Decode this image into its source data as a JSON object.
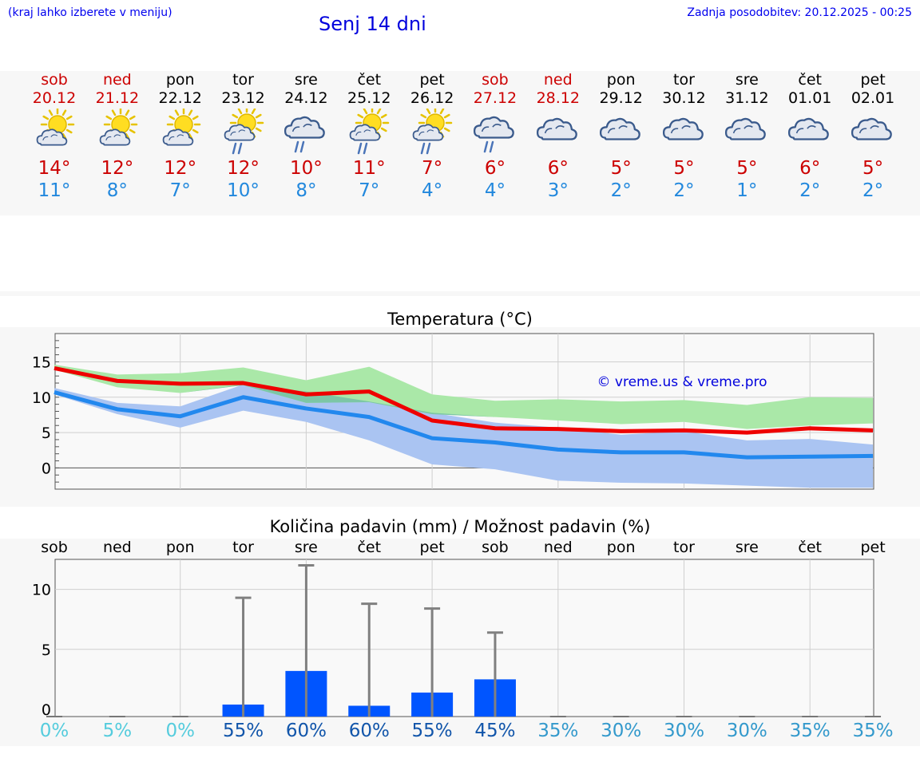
{
  "header": {
    "menu_hint": "(kraj lahko izberete v meniju)",
    "title": "Senj 14 dni",
    "updated": "Zadnja posodobitev: 20.12.2025 - 00:25"
  },
  "days": [
    {
      "name": "sob",
      "date": "20.12",
      "weekend": true,
      "icon": "sun-cloud-icon",
      "tmax": "14°",
      "tmin": "11°"
    },
    {
      "name": "ned",
      "date": "21.12",
      "weekend": true,
      "icon": "sun-cloud-icon",
      "tmax": "12°",
      "tmin": "8°"
    },
    {
      "name": "pon",
      "date": "22.12",
      "weekend": false,
      "icon": "sun-cloud-icon",
      "tmax": "12°",
      "tmin": "7°"
    },
    {
      "name": "tor",
      "date": "23.12",
      "weekend": false,
      "icon": "sun-cloud-rain-icon",
      "tmax": "12°",
      "tmin": "10°"
    },
    {
      "name": "sre",
      "date": "24.12",
      "weekend": false,
      "icon": "cloud-rain-icon",
      "tmax": "10°",
      "tmin": "8°"
    },
    {
      "name": "čet",
      "date": "25.12",
      "weekend": false,
      "icon": "sun-cloud-rain-icon",
      "tmax": "11°",
      "tmin": "7°"
    },
    {
      "name": "pet",
      "date": "26.12",
      "weekend": false,
      "icon": "sun-cloud-rain-icon",
      "tmax": "7°",
      "tmin": "4°"
    },
    {
      "name": "sob",
      "date": "27.12",
      "weekend": true,
      "icon": "cloud-rain-icon",
      "tmax": "6°",
      "tmin": "4°"
    },
    {
      "name": "ned",
      "date": "28.12",
      "weekend": true,
      "icon": "cloud-icon",
      "tmax": "6°",
      "tmin": "3°"
    },
    {
      "name": "pon",
      "date": "29.12",
      "weekend": false,
      "icon": "cloud-icon",
      "tmax": "5°",
      "tmin": "2°"
    },
    {
      "name": "tor",
      "date": "30.12",
      "weekend": false,
      "icon": "cloud-icon",
      "tmax": "5°",
      "tmin": "2°"
    },
    {
      "name": "sre",
      "date": "31.12",
      "weekend": false,
      "icon": "cloud-icon",
      "tmax": "5°",
      "tmin": "1°"
    },
    {
      "name": "čet",
      "date": "01.01",
      "weekend": false,
      "icon": "cloud-icon",
      "tmax": "6°",
      "tmin": "2°"
    },
    {
      "name": "pet",
      "date": "02.01",
      "weekend": false,
      "icon": "cloud-icon",
      "tmax": "5°",
      "tmin": "2°"
    }
  ],
  "colors": {
    "weekend": "#cc0000",
    "tmax": "#cc0000",
    "tmin": "#2288dd",
    "maxLine": "#ee0000",
    "minLine": "#2288ee",
    "maxBand": "#aae8a8",
    "minBand": "#aac4f2",
    "overlapBand": "#7cc6a6",
    "bar": "#0055ff",
    "whisker": "#808080",
    "pctLow": "#55ccdd",
    "pctMid": "#3399cc",
    "pctHigh": "#1155aa"
  },
  "chart_data": [
    {
      "type": "line",
      "title": "Temperatura (°C)",
      "watermark": "© vreme.us & vreme.pro",
      "ylim": [
        -3,
        19
      ],
      "yticks": [
        0,
        5,
        10,
        15
      ],
      "series": [
        {
          "name": "max",
          "values": [
            14.1,
            12.3,
            11.9,
            12.0,
            10.4,
            10.8,
            6.7,
            5.6,
            5.5,
            5.2,
            5.3,
            5.0,
            5.6,
            5.3
          ]
        },
        {
          "name": "min",
          "values": [
            10.7,
            8.3,
            7.3,
            10.0,
            8.4,
            7.2,
            4.2,
            3.6,
            2.6,
            2.2,
            2.2,
            1.5,
            1.6,
            1.7
          ]
        }
      ],
      "max_range": {
        "low": [
          13.9,
          11.4,
          10.6,
          11.7,
          9.2,
          9.3,
          7.6,
          7.2,
          6.7,
          6.2,
          6.5,
          5.5,
          6.0,
          6.3
        ],
        "high": [
          14.6,
          13.2,
          13.4,
          14.2,
          12.4,
          14.3,
          10.4,
          9.5,
          9.7,
          9.4,
          9.6,
          8.9,
          10.0,
          9.9
        ]
      },
      "min_range": {
        "low": [
          10.4,
          7.6,
          5.7,
          8.1,
          6.5,
          3.9,
          0.5,
          -0.2,
          -1.8,
          -2.1,
          -2.2,
          -2.5,
          -2.8,
          -2.8
        ],
        "high": [
          11.3,
          9.2,
          8.7,
          11.8,
          10.8,
          9.4,
          7.8,
          6.4,
          5.7,
          4.7,
          5.2,
          3.9,
          4.1,
          3.3
        ]
      }
    },
    {
      "type": "bar",
      "title": "Količina padavin (mm) / Možnost padavin (%)",
      "categories": [
        "sob",
        "ned",
        "pon",
        "tor",
        "sre",
        "čet",
        "pet",
        "sob",
        "ned",
        "pon",
        "tor",
        "sre",
        "čet",
        "pet"
      ],
      "ylim": [
        -0.6,
        12.5
      ],
      "yticks": [
        0,
        5,
        10
      ],
      "values": [
        0,
        0,
        0,
        0.4,
        3.2,
        0.3,
        1.4,
        2.5,
        0,
        0,
        0,
        0,
        0,
        0
      ],
      "max": [
        0,
        0,
        0,
        9.3,
        12.0,
        8.8,
        8.4,
        6.4,
        0,
        0,
        0,
        0,
        0,
        0
      ],
      "probability": [
        "0%",
        "5%",
        "0%",
        "55%",
        "60%",
        "60%",
        "55%",
        "45%",
        "35%",
        "30%",
        "30%",
        "30%",
        "35%",
        "35%"
      ]
    }
  ]
}
